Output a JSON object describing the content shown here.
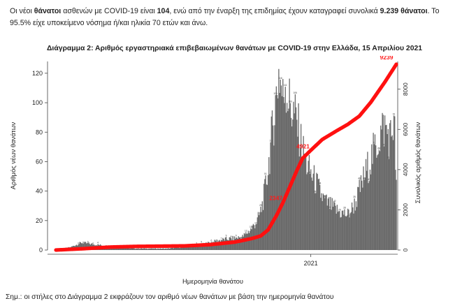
{
  "intro": {
    "t1": "Οι νέοι ",
    "b1": "θάνατοι",
    "t2": " ασθενών με COVID-19 είναι ",
    "b2": "104",
    "t3": ", ενώ από την έναρξη της επιδημίας έχουν καταγραφεί συνολικά ",
    "b3": "9.239 θάνατοι",
    "t4": ".  Το 95.5% είχε υποκείμενο νόσημα ή/και ηλικία 70 ετών και άνω."
  },
  "note": "Σημ.: οι στήλες στο Διάγραμμα 2 εκφράζουν τον αριθμό νέων θανάτων με βάση την ημερομηνία θανάτου",
  "chart_data": {
    "type": "bar",
    "title": "Διάγραμμα 2: Αριθμός εργαστηριακά επιβεβαιωμένων θανάτων με COVID-19 στην Ελλάδα, 15 Απριλίου 2021",
    "xlabel": "Ημερομηνία θανάτου",
    "ylabel": "Αριθμός νέων θανάτων",
    "y2label": "Συνολικός αριθμός θανάτων",
    "ylim": [
      0,
      128
    ],
    "y2lim": [
      0,
      9240
    ],
    "yticks": [
      "0",
      "20",
      "40",
      "60",
      "80",
      "100",
      "120"
    ],
    "y2ticks": [
      "0",
      "2000",
      "4000",
      "6000",
      "8000"
    ],
    "x_start": "2020-02-26",
    "x_end": "2021-04-15",
    "x_tick": {
      "date": "2021-01-01",
      "label": "2021"
    },
    "grid": false,
    "series": [
      {
        "name": "Νέοι θάνατοι",
        "color": "#6b6b6b",
        "kind": "bar",
        "points": [
          [
            "2020-02-26",
            0
          ],
          [
            "2020-03-15",
            2
          ],
          [
            "2020-03-28",
            5
          ],
          [
            "2020-04-10",
            4
          ],
          [
            "2020-04-25",
            3
          ],
          [
            "2020-05-10",
            2
          ],
          [
            "2020-05-30",
            1
          ],
          [
            "2020-06-20",
            1
          ],
          [
            "2020-07-10",
            1
          ],
          [
            "2020-07-30",
            2
          ],
          [
            "2020-08-15",
            3
          ],
          [
            "2020-08-31",
            5
          ],
          [
            "2020-09-15",
            7
          ],
          [
            "2020-09-30",
            8
          ],
          [
            "2020-10-10",
            9
          ],
          [
            "2020-10-20",
            14
          ],
          [
            "2020-10-28",
            20
          ],
          [
            "2020-11-02",
            28
          ],
          [
            "2020-11-06",
            40
          ],
          [
            "2020-11-10",
            55
          ],
          [
            "2020-11-13",
            70
          ],
          [
            "2020-11-16",
            85
          ],
          [
            "2020-11-19",
            100
          ],
          [
            "2020-11-21",
            110
          ],
          [
            "2020-11-23",
            121
          ],
          [
            "2020-11-26",
            112
          ],
          [
            "2020-11-28",
            102
          ],
          [
            "2020-12-01",
            117
          ],
          [
            "2020-12-03",
            107
          ],
          [
            "2020-12-06",
            100
          ],
          [
            "2020-12-09",
            95
          ],
          [
            "2020-12-12",
            92
          ],
          [
            "2020-12-15",
            86
          ],
          [
            "2020-12-18",
            80
          ],
          [
            "2020-12-21",
            70
          ],
          [
            "2020-12-25",
            62
          ],
          [
            "2020-12-29",
            55
          ],
          [
            "2021-01-03",
            50
          ],
          [
            "2021-01-08",
            45
          ],
          [
            "2021-01-13",
            38
          ],
          [
            "2021-01-18",
            33
          ],
          [
            "2021-01-25",
            30
          ],
          [
            "2021-02-01",
            27
          ],
          [
            "2021-02-08",
            25
          ],
          [
            "2021-02-15",
            24
          ],
          [
            "2021-02-20",
            28
          ],
          [
            "2021-02-25",
            33
          ],
          [
            "2021-03-01",
            40
          ],
          [
            "2021-03-06",
            48
          ],
          [
            "2021-03-11",
            56
          ],
          [
            "2021-03-16",
            63
          ],
          [
            "2021-03-21",
            70
          ],
          [
            "2021-03-26",
            78
          ],
          [
            "2021-03-31",
            84
          ],
          [
            "2021-04-04",
            80
          ],
          [
            "2021-04-08",
            76
          ],
          [
            "2021-04-11",
            86
          ],
          [
            "2021-04-13",
            78
          ],
          [
            "2021-04-14",
            60
          ],
          [
            "2021-04-15",
            45
          ]
        ]
      },
      {
        "name": "Συνολικός αριθμός θανάτων",
        "color": "#ff1010",
        "kind": "line",
        "axis": "right",
        "points": [
          [
            "2020-02-26",
            0
          ],
          [
            "2020-04-01",
            70
          ],
          [
            "2020-05-01",
            145
          ],
          [
            "2020-06-01",
            180
          ],
          [
            "2020-07-01",
            192
          ],
          [
            "2020-08-01",
            206
          ],
          [
            "2020-09-01",
            270
          ],
          [
            "2020-10-01",
            400
          ],
          [
            "2020-10-20",
            560
          ],
          [
            "2020-11-01",
            700
          ],
          [
            "2020-11-10",
            1000
          ],
          [
            "2020-11-20",
            1700
          ],
          [
            "2020-11-28",
            2347
          ],
          [
            "2020-12-06",
            3100
          ],
          [
            "2020-12-15",
            3950
          ],
          [
            "2020-12-22",
            4560
          ],
          [
            "2020-12-31",
            4921
          ],
          [
            "2021-01-15",
            5500
          ],
          [
            "2021-02-01",
            5920
          ],
          [
            "2021-02-15",
            6250
          ],
          [
            "2021-03-01",
            6660
          ],
          [
            "2021-03-15",
            7350
          ],
          [
            "2021-04-01",
            8350
          ],
          [
            "2021-04-15",
            9239
          ]
        ]
      }
    ],
    "annotations": [
      {
        "date": "2020-11-28",
        "value": 2347,
        "text": "2347"
      },
      {
        "date": "2020-12-31",
        "value": 4921,
        "text": "4921"
      },
      {
        "date": "2021-04-15",
        "value": 9239,
        "text": "9239"
      }
    ]
  }
}
